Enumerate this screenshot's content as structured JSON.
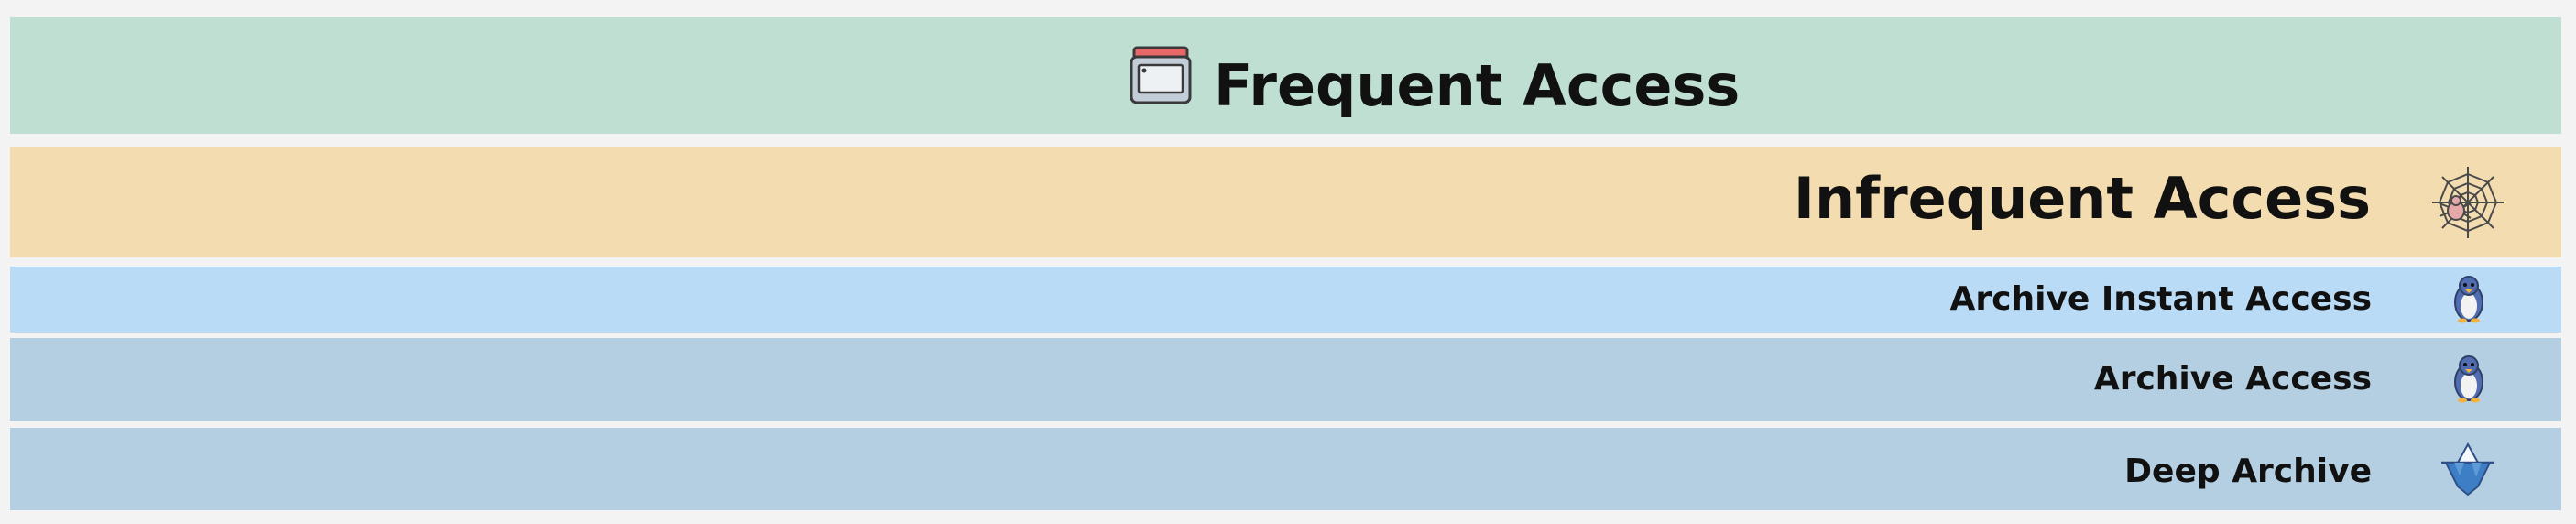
{
  "tiers": [
    {
      "label": "Frequent Access",
      "icon": "bucket-icon",
      "color": "#bedfd1"
    },
    {
      "label": "Infrequent Access",
      "icon": "spider-web-icon",
      "color": "#f3ddb0"
    },
    {
      "label": "Archive Instant Access",
      "icon": "penguin-icon",
      "color": "#badbf5"
    },
    {
      "label": "Archive Access",
      "icon": "penguin-icon",
      "color": "#b4cfe2"
    },
    {
      "label": "Deep Archive",
      "icon": "iceberg-icon",
      "color": "#b4cfe2"
    }
  ]
}
